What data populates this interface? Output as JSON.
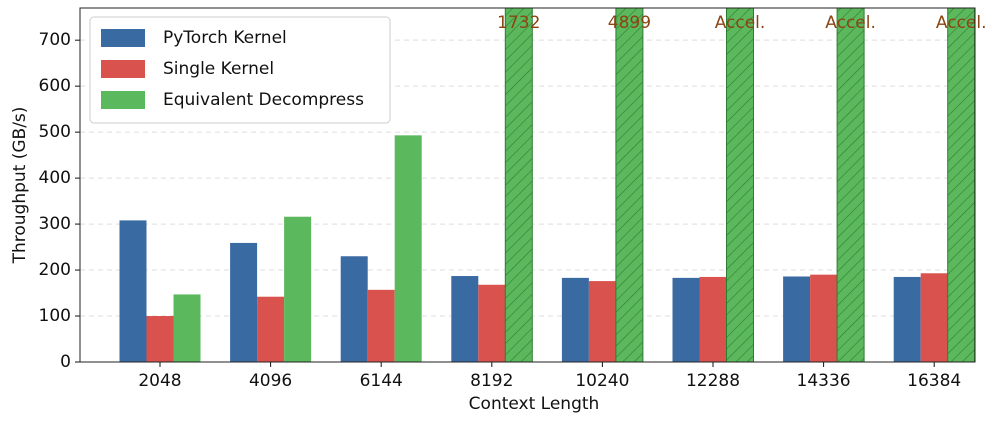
{
  "chart_data": {
    "type": "bar",
    "categories": [
      "2048",
      "4096",
      "6144",
      "8192",
      "10240",
      "12288",
      "14336",
      "16384"
    ],
    "series": [
      {
        "name": "PyTorch Kernel",
        "color": "#3a6aa2",
        "values": [
          308,
          259,
          230,
          187,
          183,
          183,
          186,
          185
        ]
      },
      {
        "name": "Single Kernel",
        "color": "#d9524d",
        "values": [
          100,
          142,
          157,
          168,
          176,
          185,
          190,
          193
        ]
      },
      {
        "name": "Equivalent Decompress",
        "color": "#5cb85c",
        "values": [
          147,
          316,
          493,
          1732,
          4899,
          null,
          null,
          null
        ],
        "value_labels": [
          null,
          null,
          null,
          "1732",
          "4899",
          "Accel.",
          "Accel.",
          "Accel."
        ]
      }
    ],
    "xlabel": "Context Length",
    "ylabel": "Throughput (GB/s)",
    "ylim": [
      0,
      770
    ],
    "yticks": [
      0,
      100,
      200,
      300,
      400,
      500,
      600,
      700
    ],
    "grid": true,
    "legend": "upper left"
  }
}
